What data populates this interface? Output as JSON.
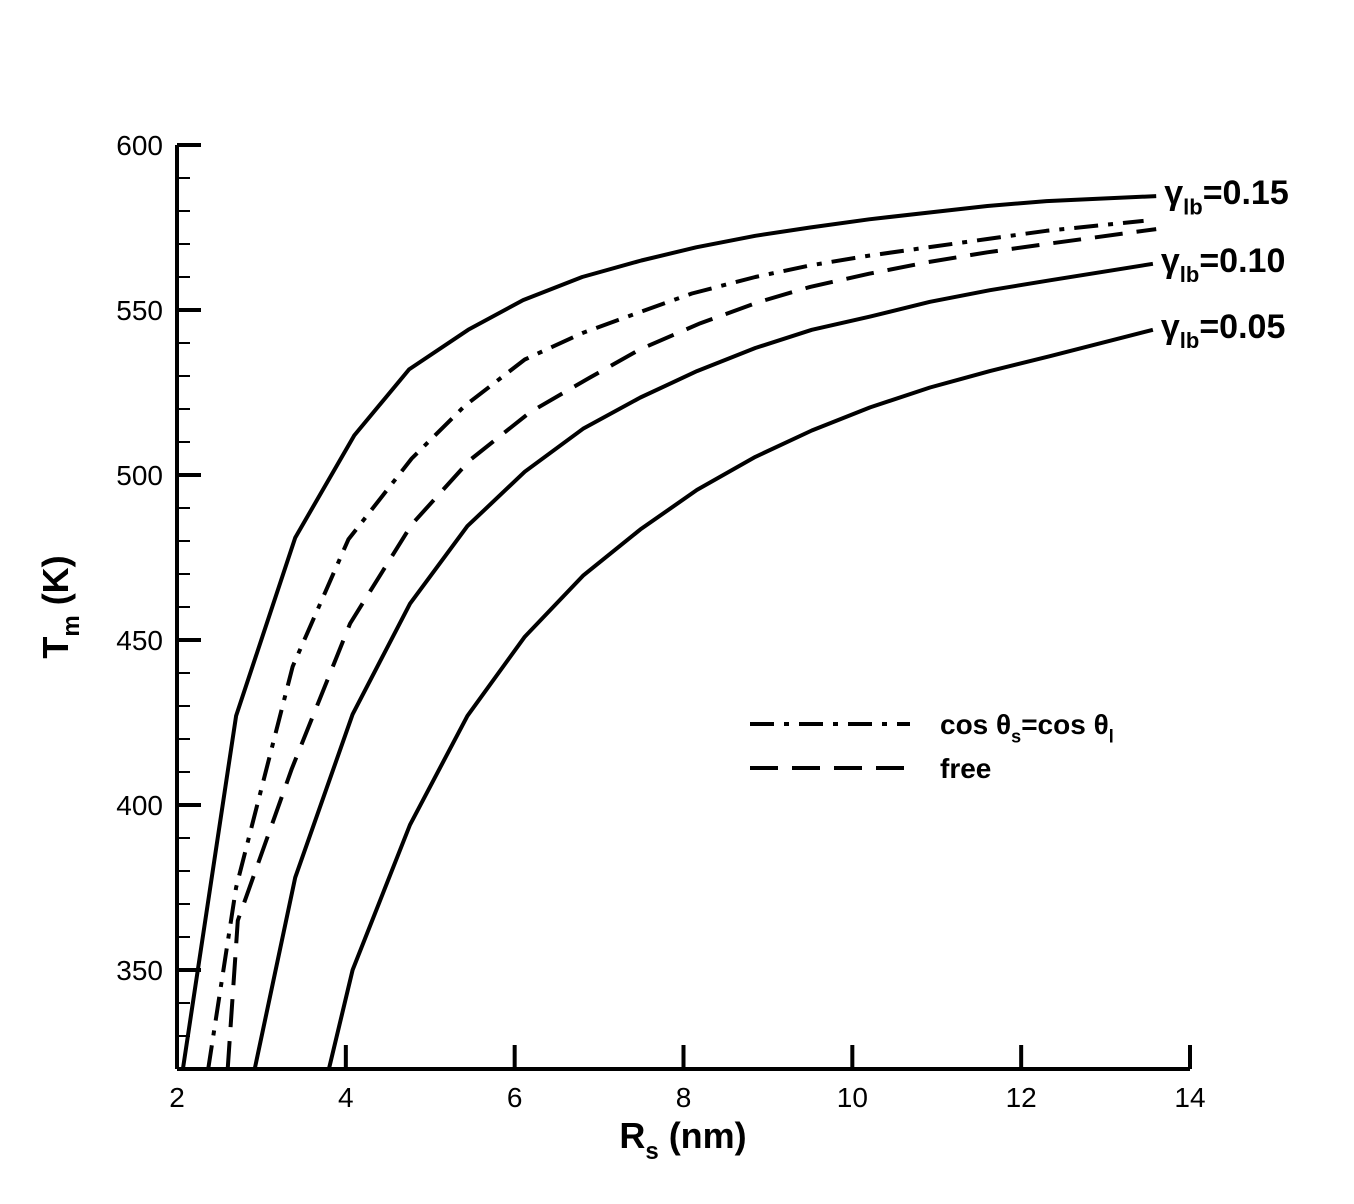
{
  "chart_data": {
    "type": "line",
    "xlabel": [
      "R",
      "s",
      " (nm)"
    ],
    "ylabel": [
      "T",
      "m",
      " (K)"
    ],
    "xlim": [
      2,
      14
    ],
    "xticks": [
      2,
      4,
      6,
      8,
      10,
      12,
      14
    ],
    "ylim": [
      320,
      600
    ],
    "yticks": [
      350,
      400,
      450,
      500,
      550,
      600
    ],
    "yminor": [
      330,
      340,
      360,
      370,
      380,
      390,
      410,
      420,
      430,
      440,
      460,
      470,
      480,
      490,
      510,
      520,
      530,
      540,
      560,
      570,
      580,
      590
    ],
    "series": [
      {
        "name": [
          "γ",
          "lb",
          "=0.15"
        ],
        "style": "solid",
        "color": "#000000",
        "label": "end",
        "x": [
          2.07,
          2.7,
          3.4,
          4.1,
          4.75,
          5.45,
          6.1,
          6.8,
          7.5,
          8.15,
          8.85,
          9.5,
          10.2,
          10.9,
          11.6,
          12.3,
          13.6
        ],
        "values": [
          320,
          427,
          481,
          512,
          532,
          544,
          553,
          560,
          565,
          569,
          572.5,
          575,
          577.5,
          579.5,
          581.5,
          583,
          584.5
        ]
      },
      {
        "name": [
          "cos θ",
          "s",
          "=cos θ",
          "l"
        ],
        "style": "dashdot",
        "color": "#000000",
        "label": "legend",
        "x": [
          2.37,
          2.7,
          3.37,
          4.03,
          4.78,
          5.41,
          6.12,
          6.8,
          7.5,
          8.1,
          8.85,
          9.5,
          10.2,
          10.9,
          11.6,
          12.3,
          13.45
        ],
        "values": [
          320,
          375,
          442,
          480.5,
          505,
          521,
          535,
          543,
          549.5,
          555,
          560,
          563.5,
          566.5,
          569,
          571.5,
          574,
          577
        ]
      },
      {
        "name": [
          "free"
        ],
        "style": "dashed",
        "color": "#000000",
        "label": "legend",
        "x": [
          2.6,
          2.72,
          3.36,
          4.05,
          4.78,
          5.47,
          6.18,
          6.89,
          7.48,
          8.2,
          8.9,
          9.5,
          10.2,
          10.9,
          11.6,
          12.3,
          13.6
        ],
        "values": [
          320,
          365,
          411,
          455,
          485,
          504.5,
          519,
          529.5,
          538,
          546,
          552.5,
          557,
          561,
          564.5,
          567.5,
          570,
          574.5
        ]
      },
      {
        "name": [
          "γ",
          "lb",
          "=0.10"
        ],
        "style": "solid",
        "color": "#000000",
        "label": "end",
        "x": [
          2.92,
          3.4,
          4.08,
          4.76,
          5.44,
          6.12,
          6.81,
          7.49,
          8.16,
          8.85,
          9.52,
          10.21,
          10.92,
          11.63,
          12.34,
          13.56
        ],
        "values": [
          320,
          378,
          427.5,
          461,
          484.5,
          501,
          514,
          523.5,
          531.5,
          538.5,
          544,
          548,
          552.5,
          556,
          559,
          564
        ]
      },
      {
        "name": [
          "γ",
          "lb",
          "=0.05"
        ],
        "style": "solid",
        "color": "#000000",
        "label": "end",
        "x": [
          3.8,
          4.08,
          4.76,
          5.44,
          6.12,
          6.81,
          7.49,
          8.16,
          8.85,
          9.52,
          10.21,
          10.92,
          11.63,
          12.34,
          13.56
        ],
        "values": [
          320,
          350,
          394,
          427,
          451,
          469.5,
          483.5,
          495.5,
          505.5,
          513.5,
          520.5,
          526.5,
          531.5,
          536,
          544
        ]
      }
    ]
  }
}
